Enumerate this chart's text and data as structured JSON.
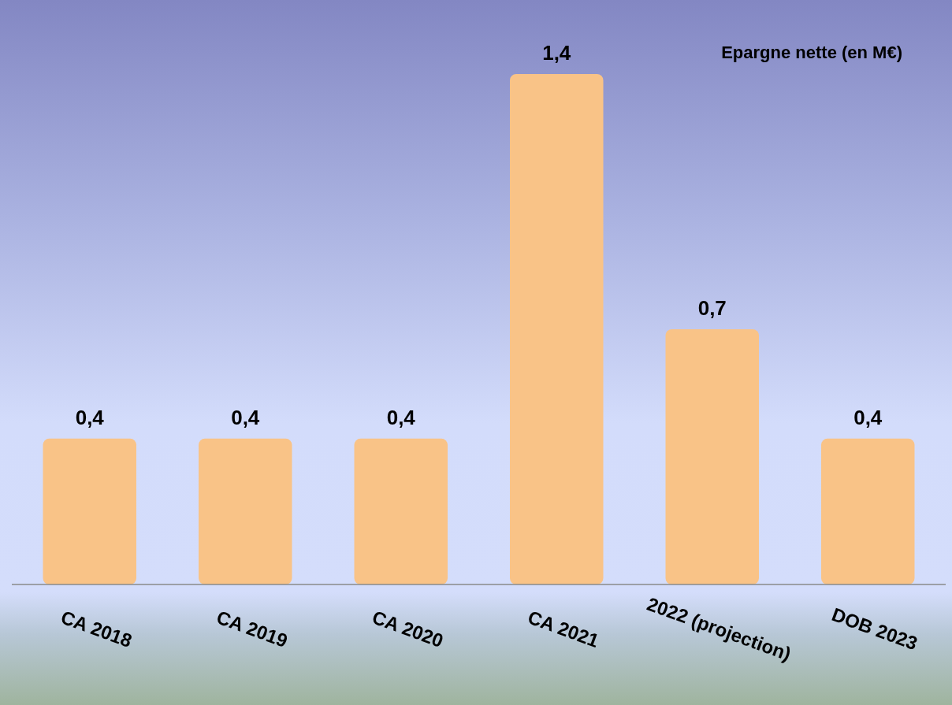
{
  "chart_data": {
    "type": "bar",
    "title": "Epargne nette (en M€)",
    "categories": [
      "CA 2018",
      "CA 2019",
      "CA 2020",
      "CA 2021",
      "2022 (projection)",
      "DOB 2023"
    ],
    "values": [
      0.4,
      0.4,
      0.4,
      1.4,
      0.7,
      0.4
    ],
    "value_labels": [
      "0,4",
      "0,4",
      "0,4",
      "1,4",
      "0,7",
      "0,4"
    ],
    "color": "#f9c387",
    "legend": false,
    "grid": false
  }
}
